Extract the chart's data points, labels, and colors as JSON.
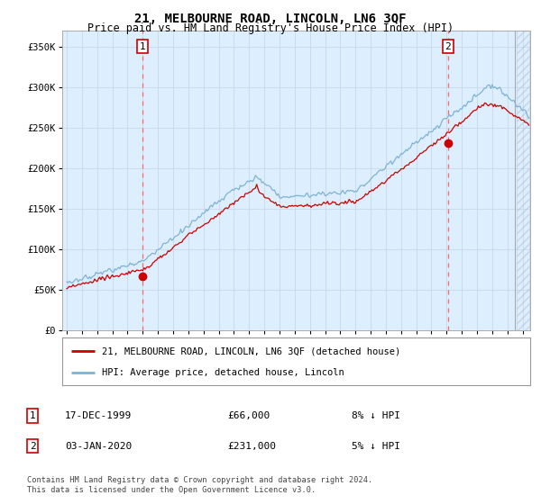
{
  "title": "21, MELBOURNE ROAD, LINCOLN, LN6 3QF",
  "subtitle": "Price paid vs. HM Land Registry's House Price Index (HPI)",
  "ylabel_ticks": [
    "£0",
    "£50K",
    "£100K",
    "£150K",
    "£200K",
    "£250K",
    "£300K",
    "£350K"
  ],
  "ytick_values": [
    0,
    50000,
    100000,
    150000,
    200000,
    250000,
    300000,
    350000
  ],
  "ylim": [
    0,
    370000
  ],
  "xlim_start": 1994.7,
  "xlim_end": 2025.5,
  "hatch_start": 2024.5,
  "purchase1_date": 2000.0,
  "purchase1_price": 66000,
  "purchase2_date": 2020.08,
  "purchase2_price": 231000,
  "legend_line1": "21, MELBOURNE ROAD, LINCOLN, LN6 3QF (detached house)",
  "legend_line2": "HPI: Average price, detached house, Lincoln",
  "table_row1_num": "1",
  "table_row1_date": "17-DEC-1999",
  "table_row1_price": "£66,000",
  "table_row1_hpi": "8% ↓ HPI",
  "table_row2_num": "2",
  "table_row2_date": "03-JAN-2020",
  "table_row2_price": "£231,000",
  "table_row2_hpi": "5% ↓ HPI",
  "footer": "Contains HM Land Registry data © Crown copyright and database right 2024.\nThis data is licensed under the Open Government Licence v3.0.",
  "line_color_red": "#cc0000",
  "line_color_blue": "#7fb3d3",
  "grid_color": "#c8d8e8",
  "bg_color": "#ffffff",
  "plot_bg_color": "#ddeeff",
  "vline_color": "#ff6666",
  "marker_color_red": "#cc0000"
}
